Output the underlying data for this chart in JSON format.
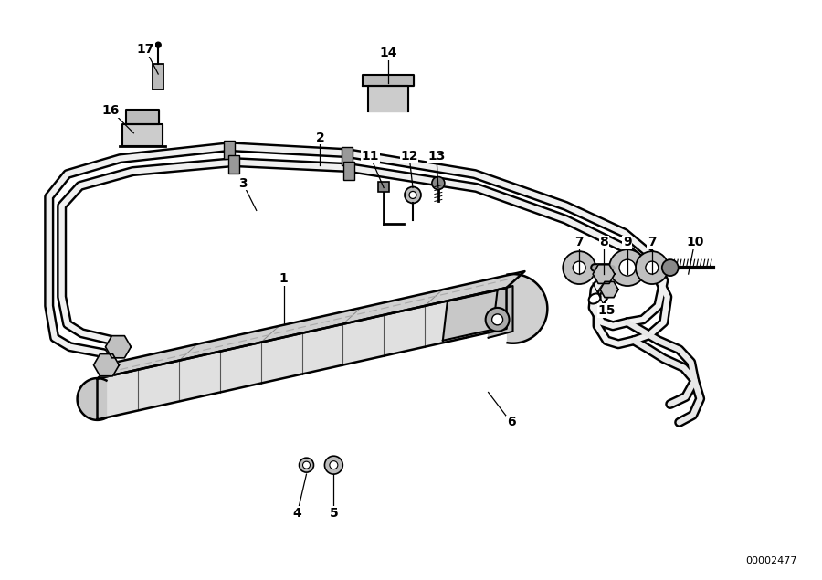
{
  "background_color": "#ffffff",
  "line_color": "#000000",
  "fig_width": 9.0,
  "fig_height": 6.35,
  "dpi": 100,
  "diagram_id": "00002477",
  "callouts": [
    [
      "1",
      3.1,
      2.8,
      3.1,
      3.3
    ],
    [
      "2",
      3.5,
      4.55,
      3.5,
      4.85
    ],
    [
      "3",
      2.8,
      4.05,
      2.65,
      4.35
    ],
    [
      "4",
      3.35,
      1.15,
      3.25,
      0.72
    ],
    [
      "5",
      3.65,
      1.15,
      3.65,
      0.72
    ],
    [
      "6",
      5.35,
      2.05,
      5.6,
      1.72
    ],
    [
      "7",
      6.35,
      3.35,
      6.35,
      3.7
    ],
    [
      "8",
      6.62,
      3.35,
      6.62,
      3.7
    ],
    [
      "9",
      6.88,
      3.35,
      6.88,
      3.7
    ],
    [
      "7",
      7.15,
      3.35,
      7.15,
      3.7
    ],
    [
      "10",
      7.55,
      3.35,
      7.62,
      3.7
    ],
    [
      "11",
      4.2,
      4.3,
      4.05,
      4.65
    ],
    [
      "12",
      4.52,
      4.3,
      4.48,
      4.65
    ],
    [
      "13",
      4.8,
      4.3,
      4.78,
      4.65
    ],
    [
      "14",
      4.25,
      5.45,
      4.25,
      5.78
    ],
    [
      "15",
      6.5,
      3.25,
      6.65,
      2.95
    ],
    [
      "16",
      1.45,
      4.9,
      1.2,
      5.15
    ],
    [
      "17",
      1.72,
      5.55,
      1.58,
      5.82
    ]
  ]
}
